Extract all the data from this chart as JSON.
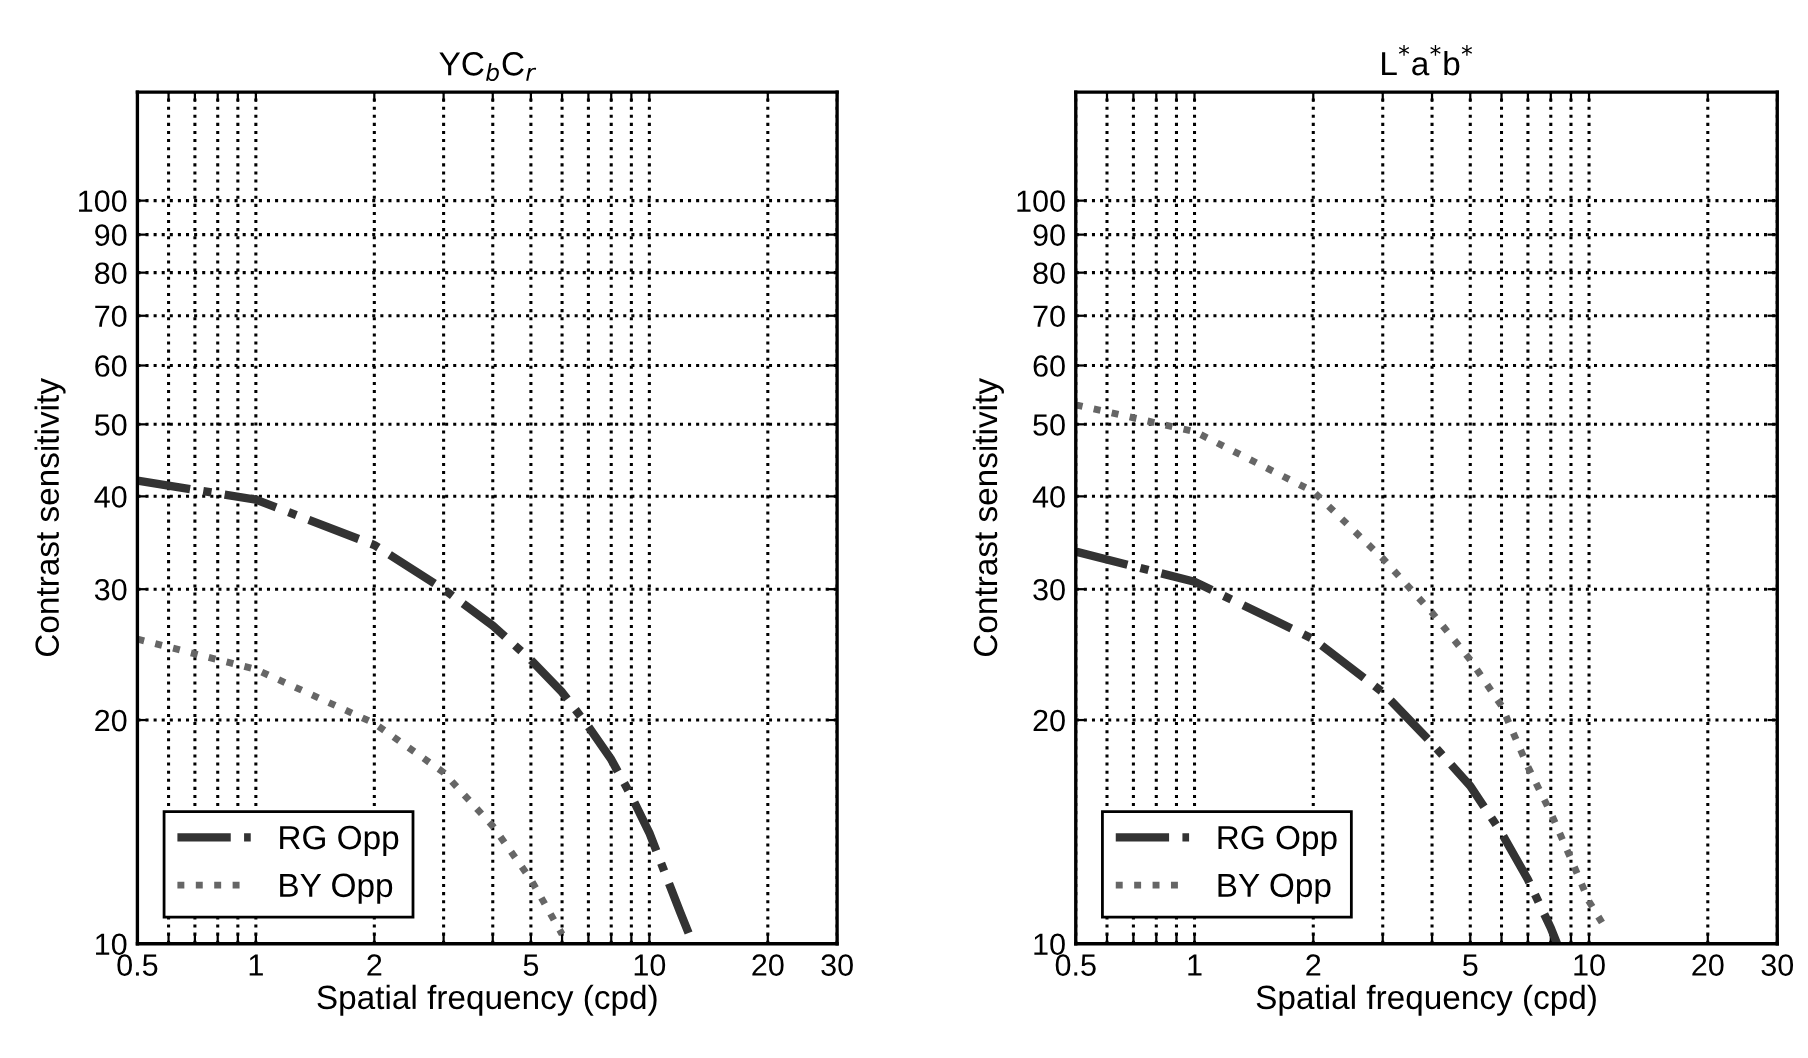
{
  "chart_data": [
    {
      "type": "line",
      "title": "YC$_{b}$C$_{r}$",
      "xlabel": "Spatial frequency (cpd)",
      "ylabel": "Contrast sensitivity",
      "log": "xy",
      "grid": true,
      "legend": "bottom left",
      "xlim": [
        0.5,
        30
      ],
      "ylim": [
        10,
        140
      ],
      "xticks": [
        0.5,
        {
          "value": 0.6,
          "label": null
        },
        {
          "value": 0.7,
          "label": null
        },
        {
          "value": 0.8,
          "label": null
        },
        {
          "value": 0.9,
          "label": null
        },
        1,
        2,
        {
          "value": 3,
          "label": null
        },
        {
          "value": 4,
          "label": null
        },
        5,
        {
          "value": 6,
          "label": null
        },
        {
          "value": 7,
          "label": null
        },
        {
          "value": 8,
          "label": null
        },
        {
          "value": 9,
          "label": null
        },
        10,
        20,
        30
      ],
      "yticks": [
        10,
        20,
        30,
        40,
        50,
        60,
        70,
        80,
        90,
        100
      ],
      "series": [
        {
          "name": "RG Opp",
          "color": "#333333",
          "line_style": "dashdot",
          "x": [
            0.5,
            1,
            2,
            3,
            4,
            5,
            6,
            7,
            8,
            9,
            10,
            12,
            12.9
          ],
          "values": [
            42,
            39.6,
            34.4,
            30.0,
            26.8,
            24.1,
            21.8,
            19.6,
            17.7,
            15.8,
            14.1,
            11.0,
            10
          ]
        },
        {
          "name": "BY Opp",
          "color": "#666666",
          "line_style": "dotted",
          "x": [
            0.5,
            1,
            2,
            3,
            4,
            5,
            6
          ],
          "values": [
            25.7,
            23.4,
            19.8,
            17.0,
            14.4,
            12.2,
            10.3
          ]
        }
      ]
    },
    {
      "type": "line",
      "title": "L$^{*}$a$^{*}$b$^{*}$",
      "xlabel": "Spatial frequency (cpd)",
      "ylabel": "Contrast sensitivity",
      "log": "xy",
      "grid": true,
      "legend": "bottom left",
      "xlim": [
        0.5,
        30
      ],
      "ylim": [
        10,
        140
      ],
      "xticks": [
        0.5,
        {
          "value": 0.6,
          "label": null
        },
        {
          "value": 0.7,
          "label": null
        },
        {
          "value": 0.8,
          "label": null
        },
        {
          "value": 0.9,
          "label": null
        },
        1,
        2,
        {
          "value": 3,
          "label": null
        },
        {
          "value": 4,
          "label": null
        },
        5,
        {
          "value": 6,
          "label": null
        },
        {
          "value": 7,
          "label": null
        },
        {
          "value": 8,
          "label": null
        },
        {
          "value": 9,
          "label": null
        },
        10,
        20,
        30
      ],
      "yticks": [
        10,
        20,
        30,
        40,
        50,
        60,
        70,
        80,
        90,
        100
      ],
      "series": [
        {
          "name": "RG Opp",
          "color": "#333333",
          "line_style": "dashdot",
          "x": [
            0.5,
            1,
            2,
            3,
            4,
            5,
            6,
            7,
            8,
            8.3
          ],
          "values": [
            33.7,
            30.7,
            25.7,
            21.8,
            18.6,
            16.3,
            14.1,
            12.2,
            10.5,
            10
          ]
        },
        {
          "name": "BY Opp",
          "color": "#666666",
          "line_style": "dotted",
          "x": [
            0.5,
            1,
            2,
            3,
            4,
            5,
            6,
            7,
            8,
            9,
            10,
            11
          ],
          "values": [
            53.1,
            48.9,
            40.6,
            33.0,
            27.9,
            24.1,
            20.9,
            17.3,
            15.0,
            13.0,
            11.4,
            10.5
          ]
        }
      ]
    }
  ]
}
